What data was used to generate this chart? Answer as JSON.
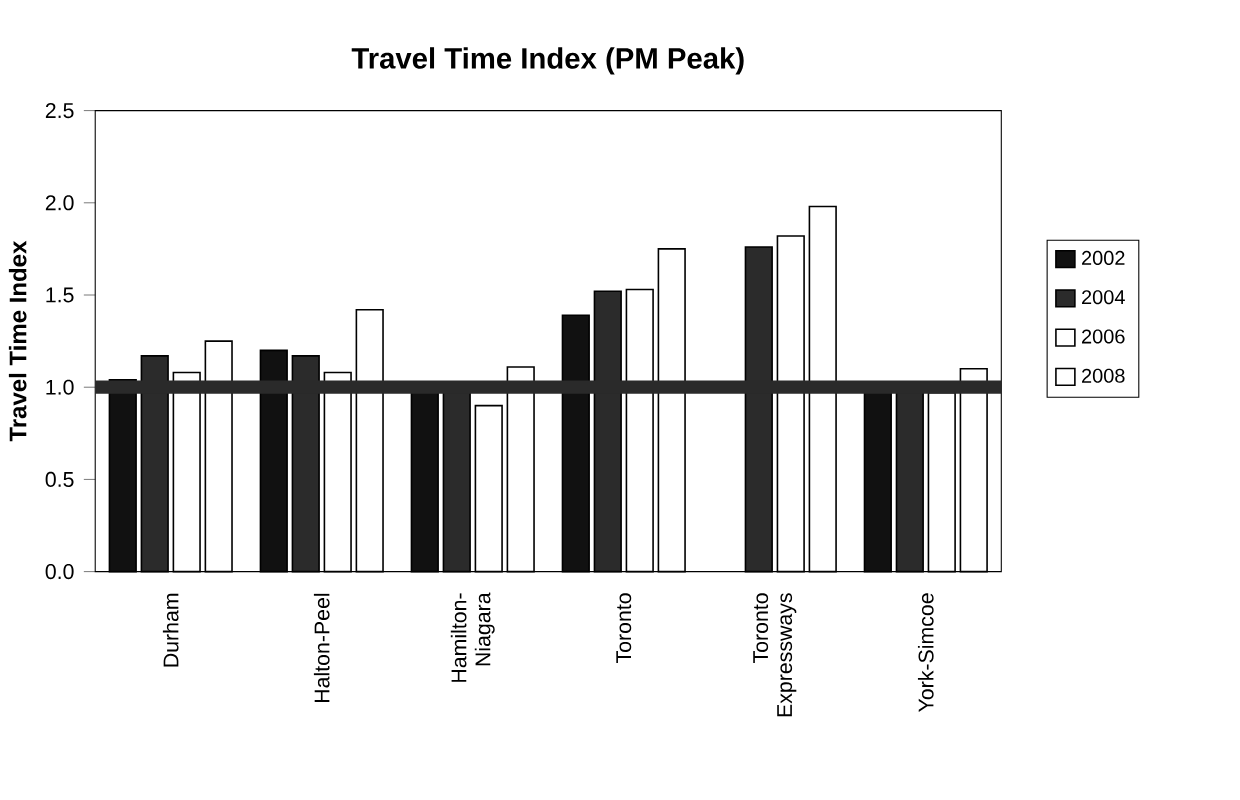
{
  "chart_data": {
    "type": "bar",
    "title": "Travel Time Index (PM Peak)",
    "ylabel": "Travel Time Index",
    "categories": [
      "Durham",
      "Halton-Peel",
      "Hamilton-Niagara",
      "Toronto",
      "Toronto Expressways",
      "York-Simcoe"
    ],
    "series": [
      {
        "name": "2002",
        "color": "#111111",
        "values": [
          1.04,
          1.2,
          1.0,
          1.39,
          null,
          1.0
        ]
      },
      {
        "name": "2004",
        "color": "#2b2b2b",
        "values": [
          1.17,
          1.17,
          0.99,
          1.52,
          1.76,
          0.99
        ]
      },
      {
        "name": "2006",
        "color": "#ffffff",
        "values": [
          1.08,
          1.08,
          0.9,
          1.53,
          1.82,
          0.97
        ]
      },
      {
        "name": "2008",
        "color": "#ffffff",
        "values": [
          1.25,
          1.42,
          1.11,
          1.75,
          1.98,
          1.1
        ]
      }
    ],
    "ylim": [
      0,
      2.5
    ],
    "yticks": [
      {
        "value": 0,
        "label": "0.0"
      },
      {
        "value": 0.5,
        "label": "0.5"
      },
      {
        "value": 1,
        "label": "1.0"
      },
      {
        "value": 1.5,
        "label": "1.5"
      },
      {
        "value": 2,
        "label": "2.0"
      },
      {
        "value": 2.5,
        "label": "2.5"
      }
    ],
    "ref_lines": [
      {
        "axis": "y",
        "value": 1,
        "color": "#2a2a2a",
        "line_style": "solid"
      }
    ],
    "legend": "right",
    "grid": false
  }
}
